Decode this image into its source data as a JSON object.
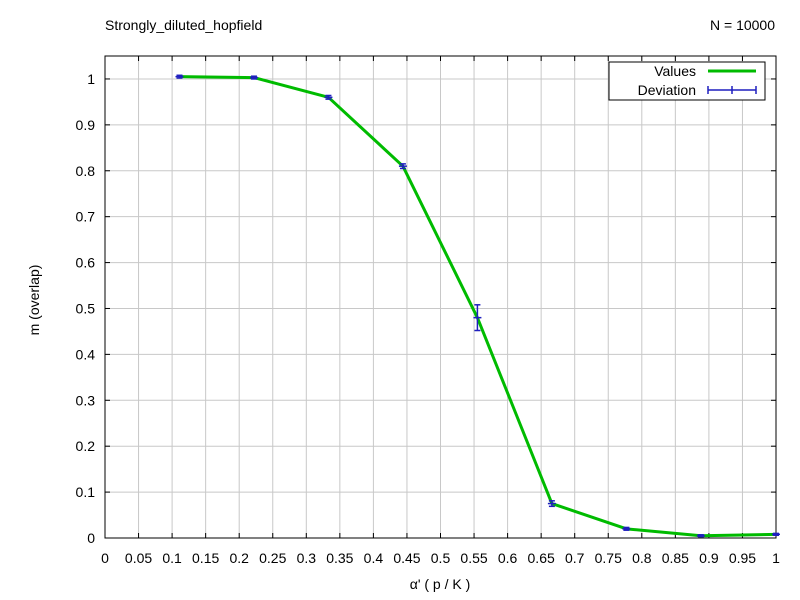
{
  "chart_data": {
    "type": "line",
    "title": "Strongly_diluted_hopfield",
    "subtitle": "N = 10000",
    "xlabel": "α'  ( p / K )",
    "ylabel": "m (overlap)",
    "xlim": [
      0,
      1
    ],
    "ylim": [
      0,
      1.05
    ],
    "xticks": [
      0,
      0.05,
      0.1,
      0.15,
      0.2,
      0.25,
      0.3,
      0.35,
      0.4,
      0.45,
      0.5,
      0.55,
      0.6,
      0.65,
      0.7,
      0.75,
      0.8,
      0.85,
      0.9,
      0.95,
      1
    ],
    "xtick_labels": [
      "0",
      "0.05",
      "0.1",
      "0.15",
      "0.2",
      "0.25",
      "0.3",
      "0.35",
      "0.4",
      "0.45",
      "0.5",
      "0.55",
      "0.6",
      "0.65",
      "0.7",
      "0.75",
      "0.8",
      "0.85",
      "0.9",
      "0.95",
      "1"
    ],
    "yticks": [
      0,
      0.1,
      0.2,
      0.3,
      0.4,
      0.5,
      0.6,
      0.7,
      0.8,
      0.9,
      1
    ],
    "ytick_labels": [
      "0",
      "0.1",
      "0.2",
      "0.3",
      "0.4",
      "0.5",
      "0.6",
      "0.7",
      "0.8",
      "0.9",
      "1"
    ],
    "grid": true,
    "legend_position": "top-right",
    "series": [
      {
        "name": "Values",
        "color": "#00bb00",
        "x": [
          0.111,
          0.222,
          0.333,
          0.444,
          0.555,
          0.666,
          0.777,
          0.888,
          1.0
        ],
        "y": [
          1.005,
          1.003,
          0.96,
          0.81,
          0.48,
          0.075,
          0.02,
          0.005,
          0.008
        ]
      },
      {
        "name": "Deviation",
        "color": "#1f1fbf",
        "x": [
          0.111,
          0.222,
          0.333,
          0.444,
          0.555,
          0.666,
          0.777,
          0.888,
          1.0
        ],
        "y": [
          1.005,
          1.003,
          0.96,
          0.81,
          0.48,
          0.075,
          0.02,
          0.005,
          0.008
        ],
        "err": [
          0.003,
          0.003,
          0.004,
          0.005,
          0.028,
          0.006,
          0.003,
          0.002,
          0.002
        ]
      }
    ]
  }
}
